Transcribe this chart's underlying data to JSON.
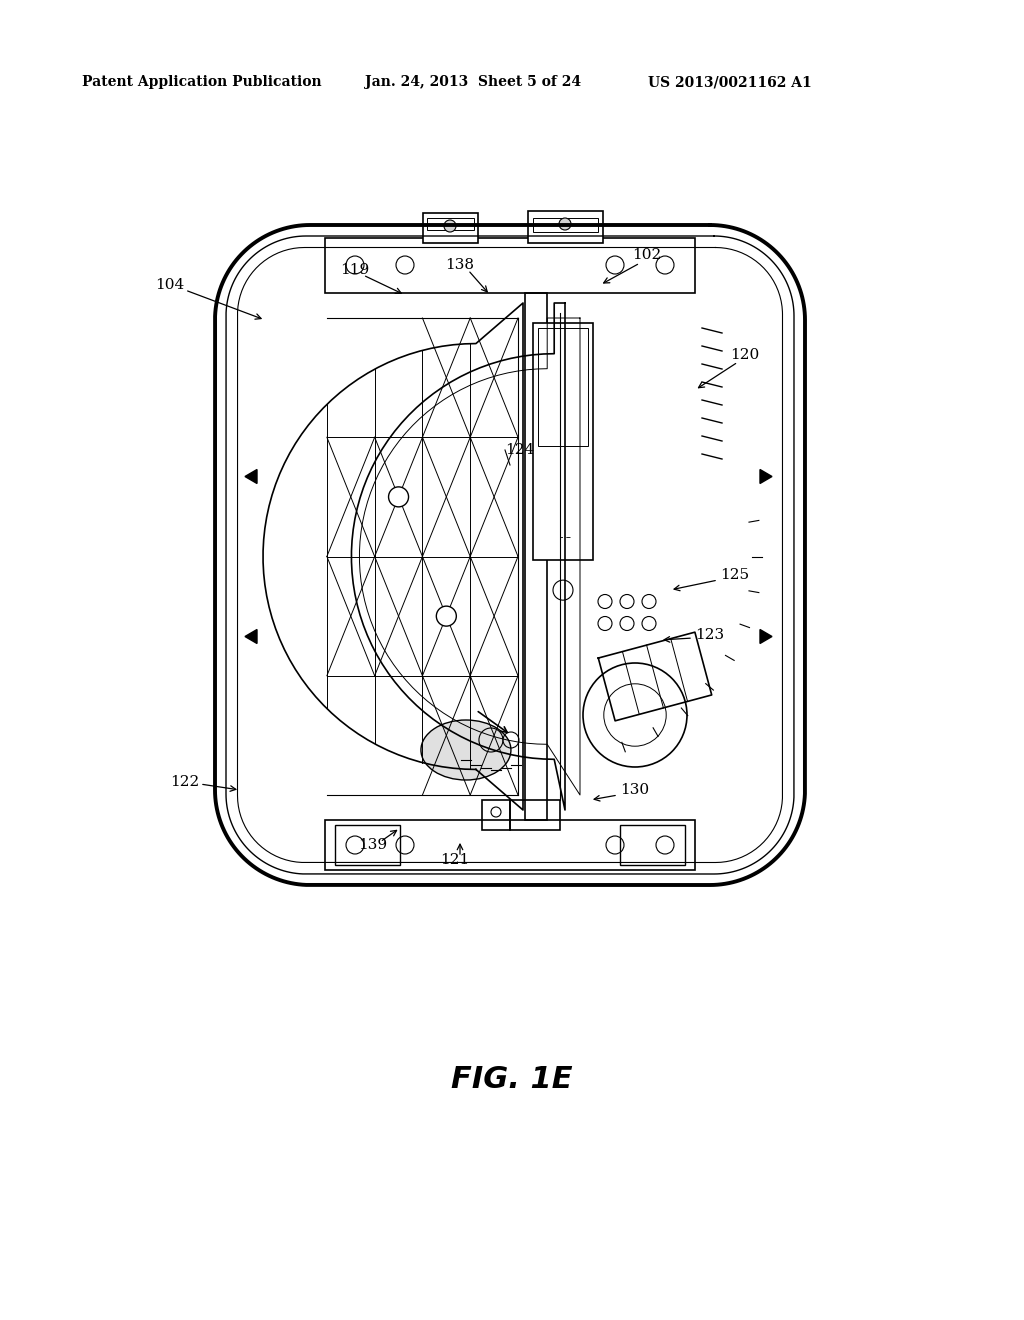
{
  "header_left": "Patent Application Publication",
  "header_mid": "Jan. 24, 2013  Sheet 5 of 24",
  "header_right": "US 2013/0021162 A1",
  "figure_label": "FIG. 1E",
  "bg": "#ffffff",
  "lc": "#000000"
}
